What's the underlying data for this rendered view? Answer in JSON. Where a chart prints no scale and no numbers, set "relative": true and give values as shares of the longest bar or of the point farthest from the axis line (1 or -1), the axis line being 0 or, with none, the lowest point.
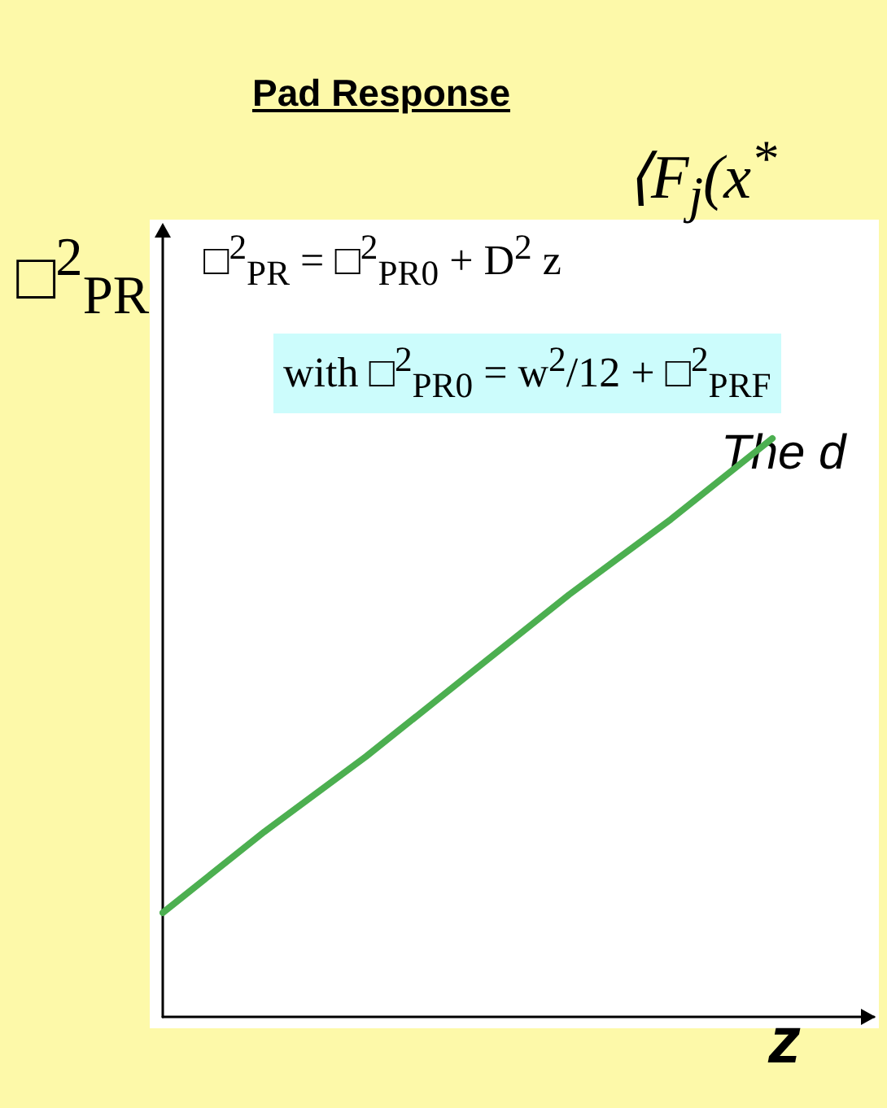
{
  "chart_data": {
    "type": "line",
    "title": "Pad Response",
    "relative": true,
    "categories": [
      null,
      null,
      null,
      null,
      null,
      null,
      null,
      null
    ],
    "values": [
      0.18,
      0.32,
      0.45,
      0.59,
      0.73,
      0.86,
      1.0,
      null
    ],
    "color": "#4caf50",
    "marker": "none",
    "line_style": "solid",
    "xlabel": "z",
    "ylabel": "□$^{2}$$_{PR}$",
    "annotations": [
      "□$^{2}$$_{PR}$ = □$^{2}$$_{PR0}$ + D$^{2}$ z",
      "with □$^{2}$$_{PR0}$ = w$^{2}$/12 + □$^{2}$$_{PRF}$",
      "⟨F$_{j}$(x$^{*}$",
      "The d"
    ]
  }
}
